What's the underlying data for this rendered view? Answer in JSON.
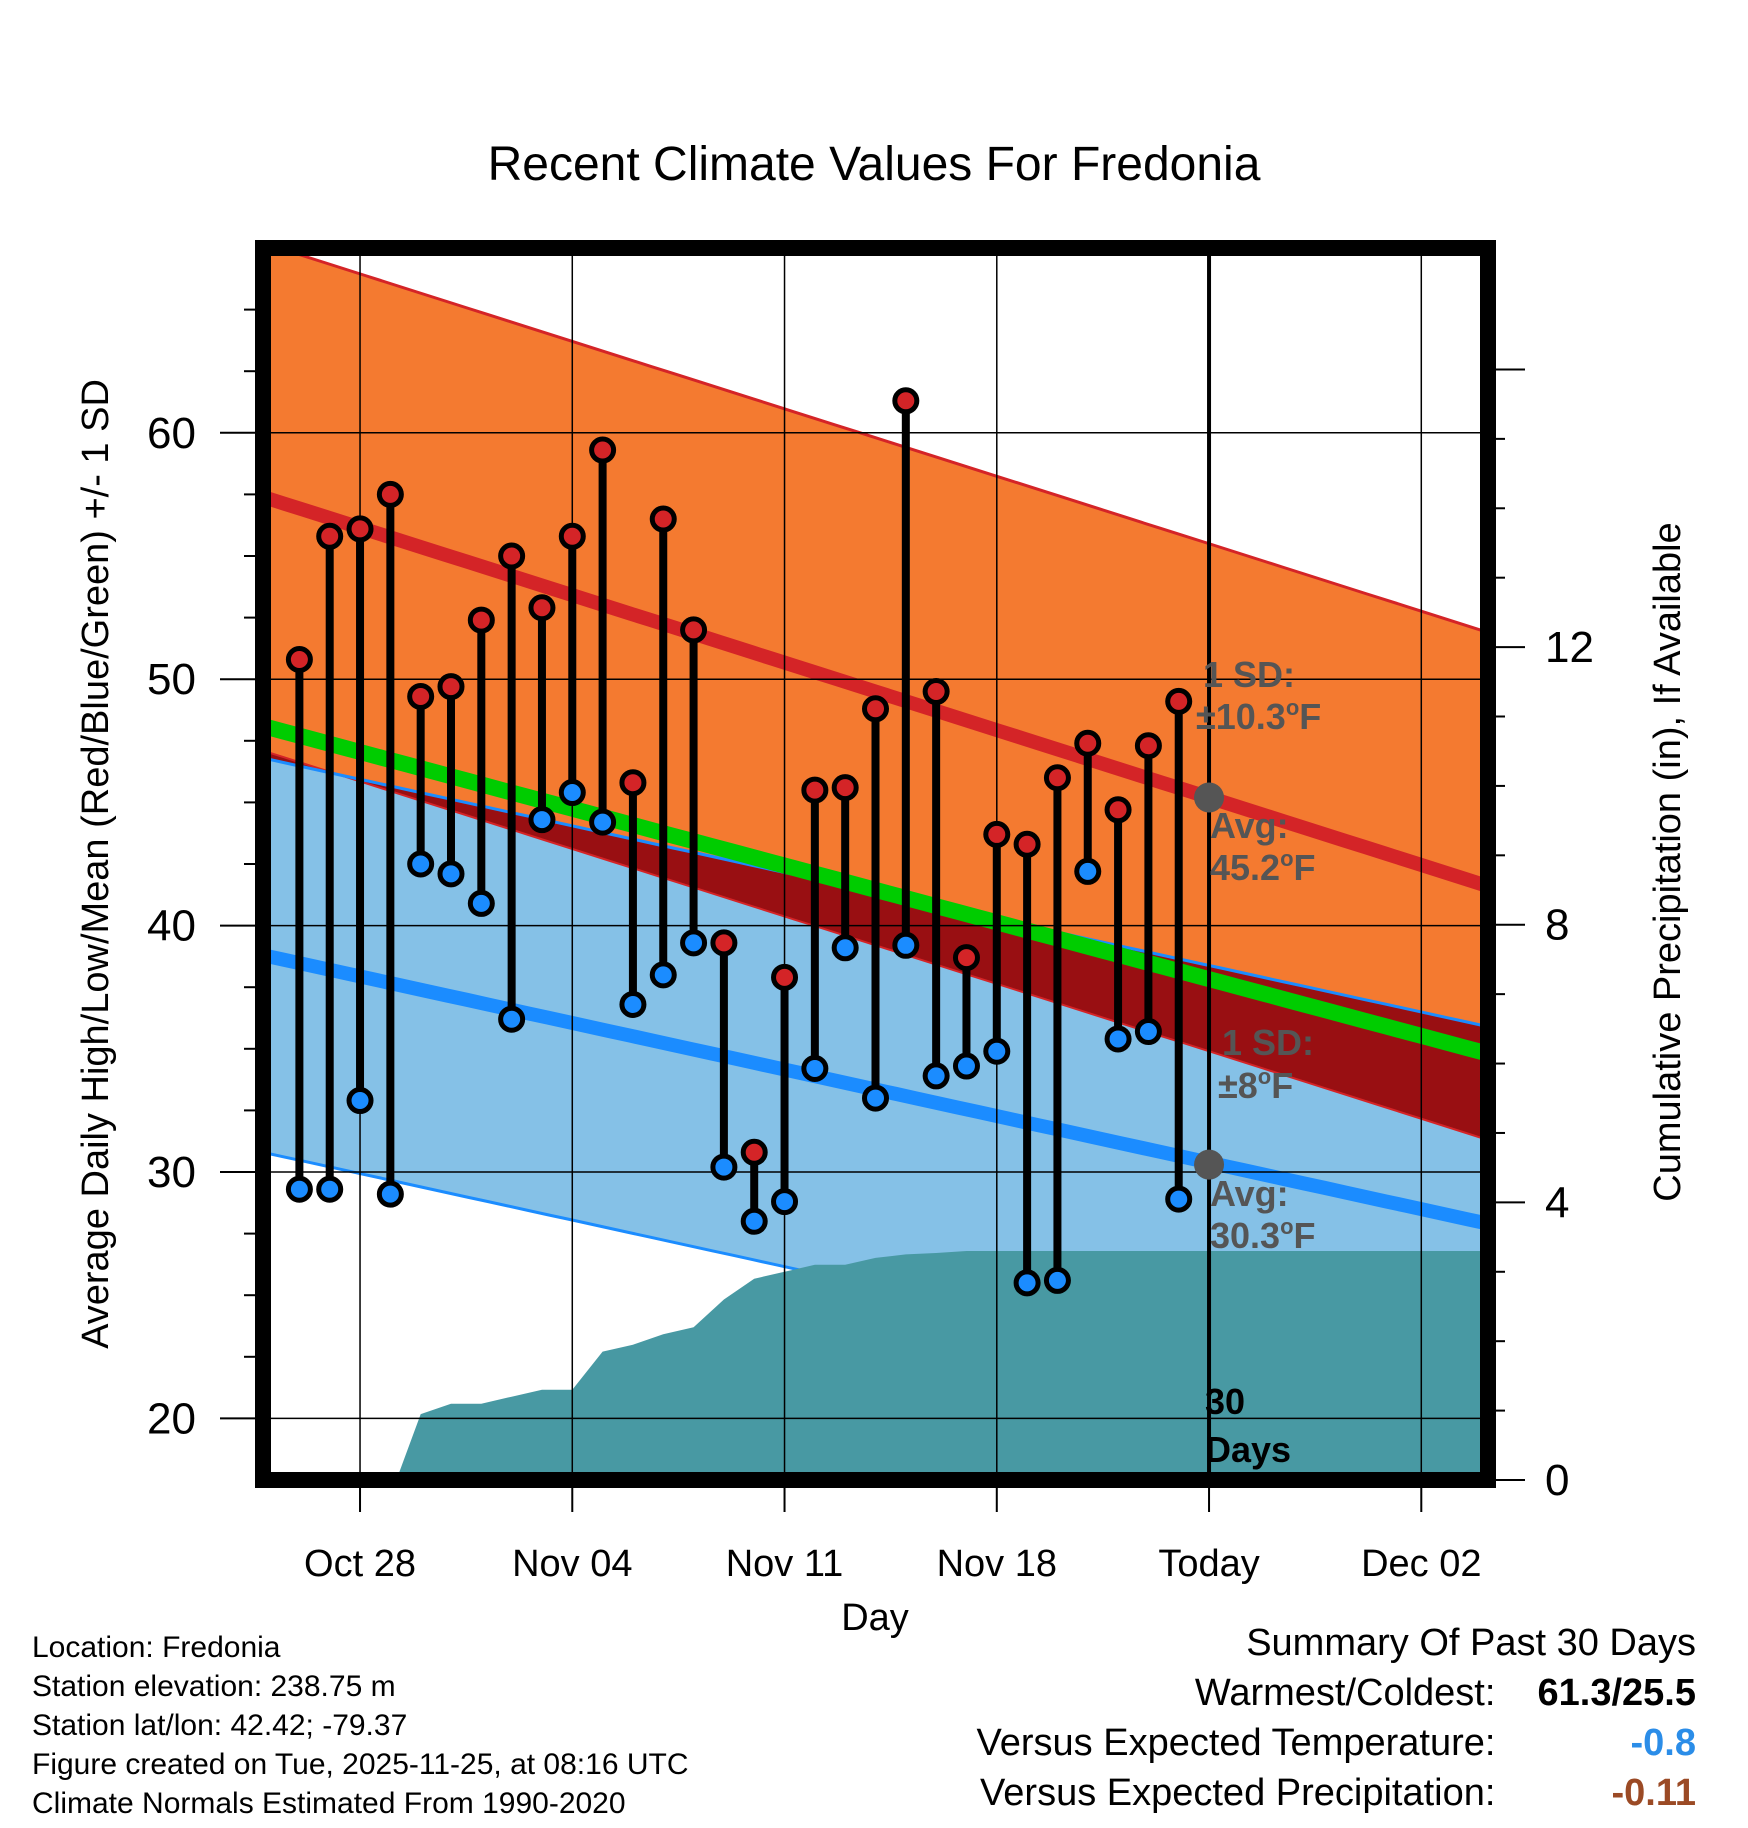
{
  "colors": {
    "high_band": "#f47a30",
    "high_line": "#d42427",
    "low_band": "#85c1e7",
    "low_line": "#1b8cff",
    "mean_line": "#00cc00",
    "overlap": "#990f12",
    "precip": "#4899a3",
    "marker_gray": "#555555",
    "temp_diff": "#2b8de8",
    "precip_diff": "#9b4a25"
  },
  "chart_data": {
    "type": "line",
    "title": "Recent Climate Values For Fredonia",
    "xlabel": "Day",
    "ylabel": "Average Daily High/Low/Mean (Red/Blue/Green) +/- 1 SD",
    "y2label": "Cumulative Precipitation (in), If Available",
    "xlim": [
      -3.2,
      37.2
    ],
    "ylim": [
      17.5,
      67.5
    ],
    "y2lim": [
      0,
      17.75
    ],
    "x_ticks": [
      {
        "x": 0,
        "label": "Oct 28"
      },
      {
        "x": 7,
        "label": "Nov 04"
      },
      {
        "x": 14,
        "label": "Nov 11"
      },
      {
        "x": 21,
        "label": "Nov 18"
      },
      {
        "x": 28,
        "label": "Today"
      },
      {
        "x": 35,
        "label": "Dec 02"
      }
    ],
    "y_ticks": [
      20,
      30,
      40,
      50,
      60
    ],
    "y2_ticks": [
      0,
      4,
      8,
      12
    ],
    "normals": {
      "x": [
        -3.2,
        37.2
      ],
      "high_avg": [
        57.4,
        41.6
      ],
      "high_sd": 10.3,
      "low_avg": [
        38.8,
        27.9
      ],
      "low_sd": 8,
      "mean_avg": [
        48.1,
        34.8
      ]
    },
    "daily": {
      "x": [
        -2,
        -1,
        0,
        1,
        2,
        3,
        4,
        5,
        6,
        7,
        8,
        9,
        10,
        11,
        12,
        13,
        14,
        15,
        16,
        17,
        18,
        19,
        20,
        21,
        22,
        23,
        24,
        25,
        26,
        27
      ],
      "high": [
        50.8,
        55.8,
        56.1,
        57.5,
        49.3,
        49.7,
        52.4,
        55.0,
        52.9,
        55.8,
        59.3,
        45.8,
        56.5,
        52.0,
        39.3,
        30.8,
        37.9,
        45.5,
        45.6,
        48.8,
        61.3,
        49.5,
        38.7,
        43.7,
        43.3,
        46.0,
        47.4,
        44.7,
        47.3,
        49.1
      ],
      "low": [
        29.3,
        29.3,
        32.9,
        29.1,
        42.5,
        42.1,
        40.9,
        36.2,
        44.3,
        45.4,
        44.2,
        36.8,
        38.0,
        39.3,
        30.2,
        28.0,
        28.8,
        34.2,
        39.1,
        33.0,
        39.2,
        33.9,
        34.3,
        34.9,
        25.5,
        25.6,
        42.2,
        35.4,
        35.7,
        28.9
      ]
    },
    "precip_cum": {
      "x": [
        1.2,
        2.0,
        3.0,
        4.0,
        5.0,
        6.0,
        7.0,
        8.0,
        9.0,
        10.0,
        11.0,
        12.0,
        13.0,
        14.0,
        15.0,
        16.0,
        17.0,
        18.0,
        19.0,
        20.0,
        21.0,
        28.0,
        37.2
      ],
      "y": [
        0,
        0.95,
        1.1,
        1.1,
        1.2,
        1.3,
        1.3,
        1.85,
        1.95,
        2.1,
        2.2,
        2.6,
        2.9,
        3.0,
        3.1,
        3.1,
        3.2,
        3.25,
        3.27,
        3.3,
        3.3,
        3.3,
        3.3
      ]
    },
    "today_x": 28,
    "annotations": {
      "high_sd_1": "1 SD:",
      "high_sd_2": "±10.3",
      "high_avg_1": "Avg:",
      "high_avg_2": "45.2",
      "low_sd_1": "1 SD:",
      "low_sd_2": "±8",
      "low_avg_1": "Avg:",
      "low_avg_2": "30.3",
      "unit_deg": "o",
      "unit_f": "F",
      "days_1": "30",
      "days_2": "Days"
    },
    "today_avg_high": 45.2,
    "today_avg_low": 30.3
  },
  "info": {
    "location": "Location: Fredonia",
    "elevation": "Station elevation: 238.75 m",
    "latlon": "Station lat/lon: 42.42; -79.37",
    "created": "Figure created on Tue, 2025-11-25, at 08:16 UTC",
    "normals": "Climate Normals Estimated From 1990-2020"
  },
  "summary": {
    "title": "Summary Of Past 30 Days",
    "warm_label": "Warmest/Coldest:",
    "warm_value": "61.3/25.5",
    "temp_label": "Versus Expected Temperature:",
    "temp_value": "-0.8",
    "precip_label": "Versus Expected Precipitation:",
    "precip_value": "-0.11"
  }
}
